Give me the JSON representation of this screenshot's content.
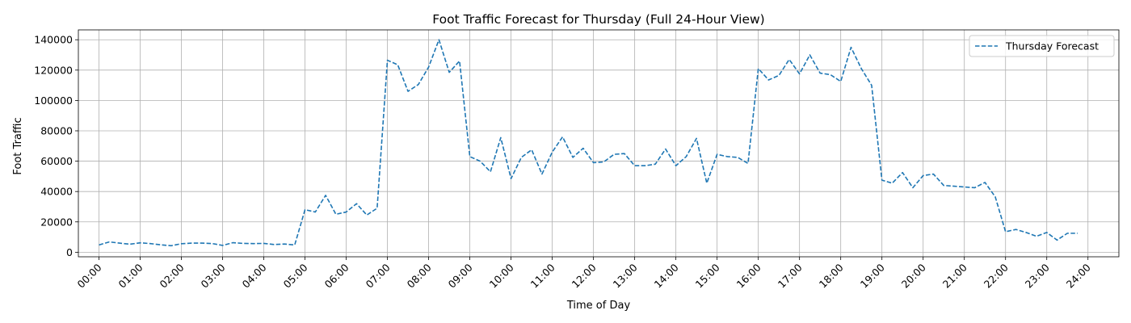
{
  "chart_data": {
    "type": "line",
    "title": "Foot Traffic Forecast for Thursday (Full 24-Hour View)",
    "xlabel": "Time of Day",
    "ylabel": "Foot Traffic",
    "x_ticks": [
      "00:00",
      "01:00",
      "02:00",
      "03:00",
      "04:00",
      "05:00",
      "06:00",
      "07:00",
      "08:00",
      "09:00",
      "10:00",
      "11:00",
      "12:00",
      "13:00",
      "14:00",
      "15:00",
      "16:00",
      "17:00",
      "18:00",
      "19:00",
      "20:00",
      "21:00",
      "22:00",
      "23:00",
      "24:00"
    ],
    "y_ticks": [
      0,
      20000,
      40000,
      60000,
      80000,
      100000,
      120000,
      140000
    ],
    "xlim_hours": [
      -0.5,
      24.75
    ],
    "ylim": [
      -3000,
      146500
    ],
    "grid": true,
    "legend_position": "top-right",
    "line_color": "#1f77b4",
    "line_style": "dashed",
    "series": [
      {
        "name": "Thursday Forecast",
        "interval_minutes": 15,
        "start_time": "00:00",
        "values": [
          4800,
          6800,
          6000,
          5300,
          6200,
          5700,
          4900,
          4300,
          5600,
          6000,
          6000,
          5700,
          4500,
          6300,
          5800,
          5700,
          5800,
          5100,
          5400,
          4800,
          28000,
          26500,
          37500,
          25000,
          26500,
          32000,
          24500,
          29000,
          126500,
          123500,
          106000,
          110500,
          122000,
          140000,
          118500,
          126000,
          63000,
          60000,
          53000,
          75500,
          48500,
          62500,
          67500,
          51500,
          66000,
          76000,
          62500,
          68500,
          59000,
          59500,
          64500,
          65000,
          57000,
          57000,
          58000,
          68000,
          57000,
          63000,
          75000,
          45500,
          64500,
          63000,
          62500,
          58500,
          121000,
          113500,
          116500,
          127000,
          117500,
          130000,
          118000,
          117000,
          112500,
          135000,
          121000,
          110000,
          47500,
          45500,
          52500,
          42500,
          50500,
          51500,
          44000,
          43500,
          43000,
          42500,
          46000,
          36500,
          13500,
          15000,
          13000,
          10500,
          13000,
          8000,
          12500,
          12500
        ]
      }
    ]
  }
}
